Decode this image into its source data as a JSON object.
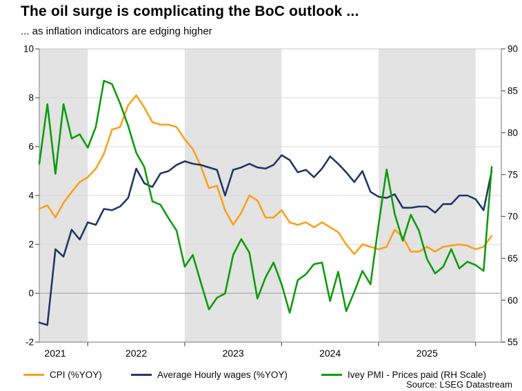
{
  "footer": {
    "source": "Source: LSEG Datastream"
  },
  "colors": {
    "band": "#E3E3E3",
    "grid": "#DADADA",
    "zero_line": "#ABABAB",
    "axis": "#8F8F8F",
    "border": "#C4C4C4",
    "tick": "#595959",
    "text": "#000000"
  },
  "chart_data": {
    "type": "line",
    "title": "The oil surge is complicating the BoC outlook ...",
    "subtitle": "... as inflation indicators are edging higher",
    "frequency": "monthly",
    "n_points": 57,
    "x_tick_labels": [
      "2021",
      "2022",
      "2023",
      "2024",
      "2025"
    ],
    "year_tick_monthIdx": [
      6,
      18,
      30,
      42,
      54
    ],
    "shaded_bands_monthIdx": [
      [
        0,
        6
      ],
      [
        18,
        30
      ],
      [
        42,
        54
      ]
    ],
    "left_axis": {
      "ticks": [
        10,
        8,
        6,
        4,
        2,
        0,
        -2
      ],
      "range": [
        -2,
        10
      ],
      "gridline_values": [
        8,
        6,
        4,
        2
      ],
      "zero_value": 0
    },
    "right_axis": {
      "ticks": [
        90,
        85,
        80,
        75,
        70,
        65,
        60,
        55
      ],
      "range": [
        55,
        90
      ]
    },
    "legend_position": "bottom",
    "series": [
      {
        "name": "CPI (%YOY)",
        "axis": "left",
        "color": "#F9A11B",
        "values": [
          3.45,
          3.6,
          3.1,
          3.7,
          4.15,
          4.55,
          4.75,
          5.1,
          5.7,
          6.7,
          6.8,
          7.7,
          8.1,
          7.6,
          7.0,
          6.9,
          6.9,
          6.8,
          6.3,
          5.9,
          5.2,
          4.3,
          4.4,
          3.4,
          2.8,
          3.3,
          4.0,
          3.8,
          3.1,
          3.1,
          3.4,
          2.9,
          2.8,
          2.9,
          2.7,
          2.9,
          2.7,
          2.5,
          2.0,
          1.6,
          2.0,
          1.9,
          1.8,
          1.9,
          2.6,
          2.3,
          1.7,
          1.7,
          1.9,
          1.7,
          1.9,
          1.95,
          2.0,
          1.95,
          1.8,
          1.9,
          2.35
        ]
      },
      {
        "name": "Average Hourly wages (%YOY)",
        "axis": "left",
        "color": "#1F3864",
        "values": [
          -1.2,
          -1.3,
          1.8,
          1.5,
          2.6,
          2.2,
          2.9,
          2.8,
          3.45,
          3.4,
          3.55,
          3.9,
          5.1,
          4.5,
          4.35,
          4.9,
          5.0,
          5.25,
          5.4,
          5.3,
          5.25,
          5.15,
          5.05,
          4.0,
          5.05,
          5.15,
          5.3,
          5.15,
          5.1,
          5.25,
          5.65,
          5.45,
          4.95,
          5.05,
          4.75,
          5.1,
          5.6,
          5.3,
          4.95,
          4.55,
          5.0,
          4.15,
          3.95,
          3.9,
          4.05,
          3.5,
          3.5,
          3.55,
          3.55,
          3.3,
          3.65,
          3.65,
          4.0,
          4.0,
          3.85,
          3.4,
          5.0
        ]
      },
      {
        "name": "Ivey PMI - Prices paid (RH Scale)",
        "axis": "right",
        "color": "#0D9C0D",
        "values": [
          76.3,
          83.4,
          75.1,
          83.4,
          79.3,
          79.8,
          78.2,
          80.7,
          86.2,
          85.8,
          83.5,
          80.8,
          77.6,
          75.9,
          71.8,
          71.4,
          69.8,
          68.3,
          64.0,
          65.4,
          62.1,
          58.9,
          60.3,
          60.8,
          65.4,
          67.3,
          65.7,
          60.2,
          62.7,
          64.5,
          61.9,
          58.5,
          62.4,
          63.1,
          64.3,
          64.5,
          59.9,
          63.4,
          58.7,
          61.0,
          63.5,
          61.9,
          69.0,
          75.6,
          70.3,
          67.1,
          70.2,
          68.3,
          64.9,
          63.2,
          64.0,
          66.1,
          63.8,
          64.6,
          64.2,
          63.5,
          75.9
        ]
      }
    ]
  }
}
